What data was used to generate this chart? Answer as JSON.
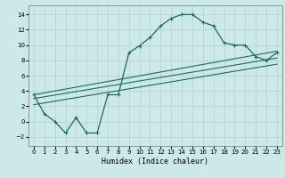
{
  "title": "",
  "xlabel": "Humidex (Indice chaleur)",
  "bg_color": "#cce8e8",
  "grid_color": "#b8d8d8",
  "line_color": "#1a6b5a",
  "xlim": [
    -0.5,
    23.5
  ],
  "ylim": [
    -3.2,
    15.2
  ],
  "yticks": [
    -2,
    0,
    2,
    4,
    6,
    8,
    10,
    12,
    14
  ],
  "xticks": [
    0,
    1,
    2,
    3,
    4,
    5,
    6,
    7,
    8,
    9,
    10,
    11,
    12,
    13,
    14,
    15,
    16,
    17,
    18,
    19,
    20,
    21,
    22,
    23
  ],
  "curve1_x": [
    0,
    1,
    2,
    3,
    4,
    5,
    6,
    7,
    8,
    9,
    10,
    11,
    12,
    13,
    14,
    15,
    16,
    17,
    18,
    19,
    20,
    21,
    22,
    23
  ],
  "curve1_y": [
    3.5,
    1.0,
    0.0,
    -1.5,
    0.5,
    -1.5,
    -1.5,
    3.5,
    3.5,
    9.0,
    9.9,
    11.0,
    12.5,
    13.5,
    14.0,
    14.0,
    13.0,
    12.5,
    10.3,
    10.0,
    10.0,
    8.5,
    8.0,
    9.0
  ],
  "line2_x": [
    0,
    23
  ],
  "line2_y": [
    3.5,
    9.2
  ],
  "line3_x": [
    0,
    23
  ],
  "line3_y": [
    3.0,
    8.3
  ],
  "line4_x": [
    0,
    23
  ],
  "line4_y": [
    2.2,
    7.5
  ]
}
